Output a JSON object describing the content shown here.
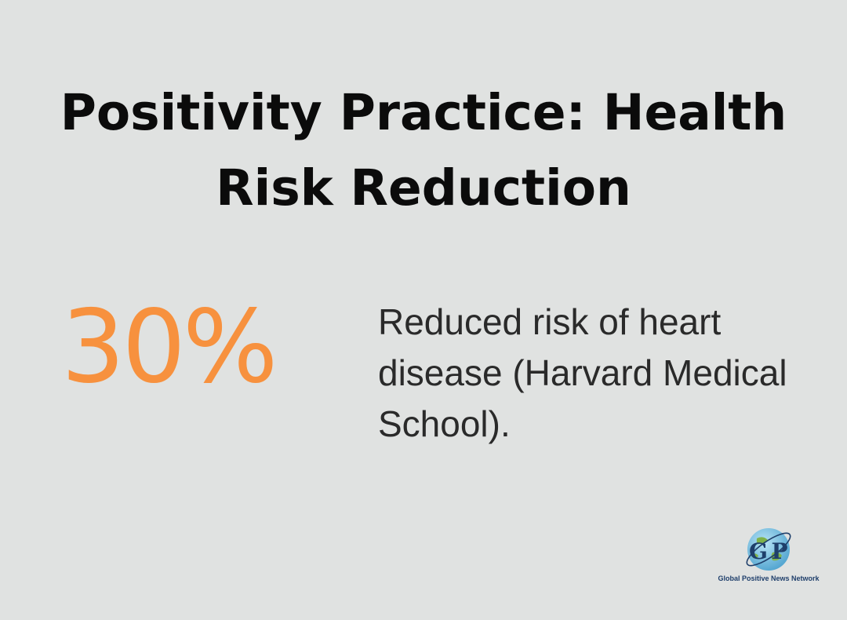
{
  "title": "Positivity Practice: Health Risk Reduction",
  "stat": {
    "value": "30%",
    "description": "Reduced risk of heart disease (Harvard Medical School)."
  },
  "logo": {
    "letters_left": "G",
    "letters_right": "P",
    "name": "Global Positive News Network",
    "icon": "globe-icon"
  },
  "colors": {
    "background": "#e0e2e1",
    "accent": "#f7913e",
    "title": "#0b0b0b",
    "logo_blue": "#1f3f6b"
  }
}
